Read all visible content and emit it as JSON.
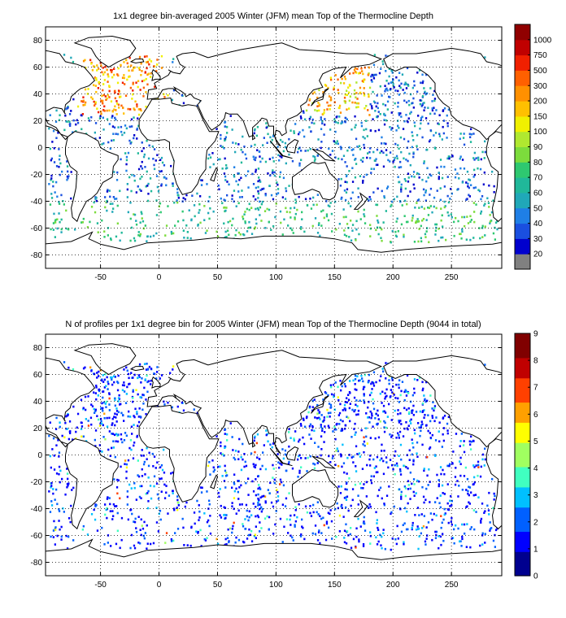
{
  "panels": [
    {
      "title": "1x1 degree bin-averaged 2005 Winter (JFM) mean Top of the Thermocline Depth",
      "x_ticks": [
        "-50",
        "0",
        "50",
        "100",
        "150",
        "200",
        "250"
      ],
      "y_ticks": [
        "80",
        "60",
        "40",
        "20",
        "0",
        "-20",
        "-40",
        "-60",
        "-80"
      ],
      "colorbar": {
        "labels": [
          "20",
          "30",
          "40",
          "50",
          "60",
          "70",
          "80",
          "90",
          "100",
          "150",
          "200",
          "300",
          "500",
          "750",
          "1000"
        ],
        "colors": [
          "#808080",
          "#0000cd",
          "#1a4fe0",
          "#1f7fe6",
          "#20a8b8",
          "#20b89a",
          "#2ec870",
          "#7cdc3c",
          "#b0e830",
          "#f0f000",
          "#ffc000",
          "#ff9000",
          "#ff6000",
          "#f02000",
          "#c00000",
          "#900000"
        ]
      }
    },
    {
      "title": "N of profiles per 1x1 degree bin for 2005 Winter (JFM) mean Top of the Thermocline Depth  (9044 in total)",
      "x_ticks": [
        "-50",
        "0",
        "50",
        "100",
        "150",
        "200",
        "250"
      ],
      "y_ticks": [
        "80",
        "60",
        "40",
        "20",
        "0",
        "-20",
        "-40",
        "-60",
        "-80"
      ],
      "colorbar": {
        "labels": [
          "0",
          "1",
          "2",
          "3",
          "4",
          "5",
          "6",
          "7",
          "8",
          "9"
        ],
        "colors": [
          "#00008f",
          "#0000ff",
          "#0060ff",
          "#00c0ff",
          "#40ffc0",
          "#a0ff60",
          "#ffff00",
          "#ffa000",
          "#ff4000",
          "#c00000",
          "#800000"
        ]
      }
    }
  ]
}
